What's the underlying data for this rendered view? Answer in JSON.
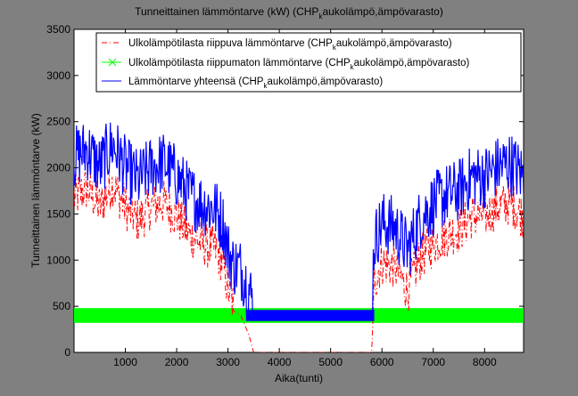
{
  "window": {
    "background": "#808080",
    "axes_background": "#ffffff"
  },
  "chart_data": {
    "type": "line",
    "title": {
      "main": "Tunneittainen lämmöntarve (kW) (CHP",
      "sub": "k",
      "tail": "aukolämpö,ämpövarasto)"
    },
    "xlabel": "Aika(tunti)",
    "ylabel": "Tunneittainen lämmöntarve (kW)",
    "xlim": [
      0,
      8760
    ],
    "ylim": [
      0,
      3500
    ],
    "xticks": [
      1000,
      2000,
      3000,
      4000,
      5000,
      6000,
      7000,
      8000
    ],
    "yticks": [
      0,
      500,
      1000,
      1500,
      2000,
      2500,
      3000,
      3500
    ],
    "grid": false,
    "legend_position": "top-right",
    "series": [
      {
        "legend_main": "Ulkolämpötilasta riippuva lämmöntarve (CHP",
        "legend_sub": "k",
        "legend_tail": "aukolämpö,ämpövarasto)",
        "color": "#ff0000",
        "line_style": "dash-dot",
        "marker": "none",
        "x": [
          0,
          250,
          500,
          750,
          1000,
          1250,
          1500,
          1750,
          2000,
          2250,
          2500,
          2750,
          2900,
          3000,
          3100,
          3250,
          3400,
          3500,
          3700,
          4000,
          4500,
          5000,
          5500,
          5800,
          5850,
          6000,
          6250,
          6500,
          6750,
          7000,
          7250,
          7500,
          7750,
          8000,
          8250,
          8500,
          8760
        ],
        "values": [
          1600,
          1700,
          1500,
          1750,
          1500,
          1350,
          1500,
          1550,
          1400,
          1200,
          1100,
          1050,
          900,
          600,
          450,
          400,
          200,
          0,
          0,
          0,
          0,
          0,
          0,
          0,
          700,
          900,
          850,
          600,
          950,
          1100,
          1200,
          1250,
          1400,
          1400,
          1500,
          1550,
          1400
        ]
      },
      {
        "legend_main": "Ulkolämpötilasta riippumaton lämmöntarve (CHP",
        "legend_sub": "k",
        "legend_tail": "aukolämpö,ämpövarasto)",
        "color": "#00ff00",
        "line_style": "solid",
        "marker": "x",
        "band_min": 320,
        "band_max": 480
      },
      {
        "legend_main": "Lämmöntarve yhteensä (CHP",
        "legend_sub": "k",
        "legend_tail": "aukolämpö,ämpövarasto)",
        "color": "#0000ff",
        "line_style": "solid",
        "marker": "none",
        "x": [
          0,
          250,
          500,
          750,
          1000,
          1250,
          1500,
          1750,
          2000,
          2250,
          2500,
          2750,
          2900,
          3000,
          3100,
          3250,
          3400,
          3500,
          3700,
          4000,
          4500,
          5000,
          5500,
          5800,
          5850,
          6000,
          6250,
          6500,
          6750,
          7000,
          7250,
          7500,
          7750,
          8000,
          8250,
          8500,
          8760
        ],
        "values": [
          2000,
          2100,
          1900,
          2150,
          1900,
          1750,
          1900,
          1950,
          1800,
          1600,
          1500,
          1450,
          1300,
          1000,
          850,
          800,
          600,
          400,
          400,
          400,
          400,
          400,
          400,
          400,
          1100,
          1300,
          1250,
          1000,
          1350,
          1500,
          1600,
          1650,
          1800,
          1800,
          1900,
          1950,
          1800
        ]
      }
    ]
  }
}
